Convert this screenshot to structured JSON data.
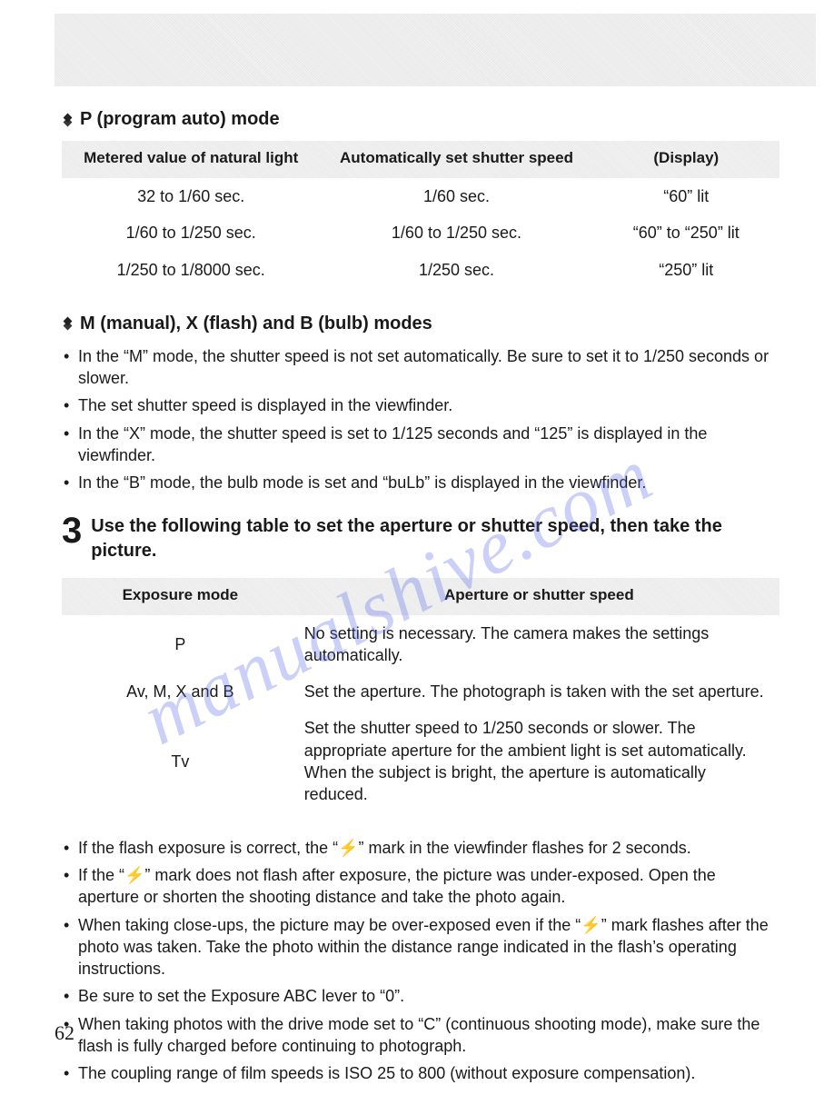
{
  "colors": {
    "text": "#1a1a1a",
    "background": "#ffffff",
    "header_band": "#ececec",
    "watermark": "rgba(90,110,230,0.32)"
  },
  "typography": {
    "body_family": "Arial, Helvetica, sans-serif",
    "body_size_pt": 13,
    "heading_size_pt": 15,
    "heading_weight": "bold",
    "step_number_size_pt": 30,
    "pagenum_family": "Georgia, serif",
    "pagenum_size_pt": 16
  },
  "watermark_text": "manualshive.com",
  "page_number": "62",
  "section1": {
    "heading": "P (program auto) mode",
    "table": {
      "type": "table",
      "columns": [
        "Metered value of natural light",
        "Automatically set shutter speed",
        "(Display)"
      ],
      "col_widths_pct": [
        36,
        38,
        26
      ],
      "rows": [
        [
          "32 to 1/60 sec.",
          "1/60 sec.",
          "“60” lit"
        ],
        [
          "1/60 to 1/250 sec.",
          "1/60 to 1/250 sec.",
          "“60” to “250” lit"
        ],
        [
          "1/250 to 1/8000 sec.",
          "1/250 sec.",
          "“250” lit"
        ]
      ],
      "header_bg": "#ececec",
      "cell_align": "center"
    }
  },
  "section2": {
    "heading": "M (manual), X (flash) and B (bulb) modes",
    "bullets": [
      "In the “M” mode, the shutter speed is not set automatically.  Be sure to set it to 1/250 seconds or slower.",
      "The set shutter speed is displayed in the viewfinder.",
      "In the “X” mode, the shutter speed is set to 1/125 seconds and “125” is displayed in the viewfinder.",
      "In the “B” mode, the bulb mode is set and “buLb” is displayed in the viewfinder."
    ]
  },
  "step3": {
    "number": "3",
    "text": "Use the following table to set the aperture or shutter speed, then take the picture."
  },
  "section3": {
    "table": {
      "type": "table",
      "columns": [
        "Exposure mode",
        "Aperture or shutter speed"
      ],
      "col_widths_pct": [
        33,
        67
      ],
      "rows": [
        [
          "P",
          "No setting is necessary.  The camera makes the settings automatically."
        ],
        [
          "Av, M, X and B",
          "Set the aperture.  The photograph is taken with the set aperture."
        ],
        [
          "Tv",
          "Set the shutter speed to 1/250 seconds or slower.  The appropriate aperture for the ambient light is set automatically.  When the subject is bright, the aperture is automatically reduced."
        ]
      ],
      "header_bg": "#ececec"
    }
  },
  "final_bullets": [
    "If the flash exposure is correct, the “⚡” mark in the viewfinder flashes for 2 seconds.",
    "If the “⚡” mark does not flash after exposure, the picture was under-exposed.  Open the aperture or shorten the shooting distance and take the photo again.",
    "When taking close-ups, the picture may be over-exposed even if the “⚡” mark flashes after the photo was taken.  Take the photo within the distance range indicated in the flash’s operating instructions.",
    "Be sure to set the Exposure ABC lever to “0”.",
    "When taking photos with the drive mode set to “C” (continuous shooting mode), make sure the flash is fully charged before continuing to photograph.",
    "The coupling range of film speeds is ISO 25 to 800 (without exposure compensation)."
  ]
}
